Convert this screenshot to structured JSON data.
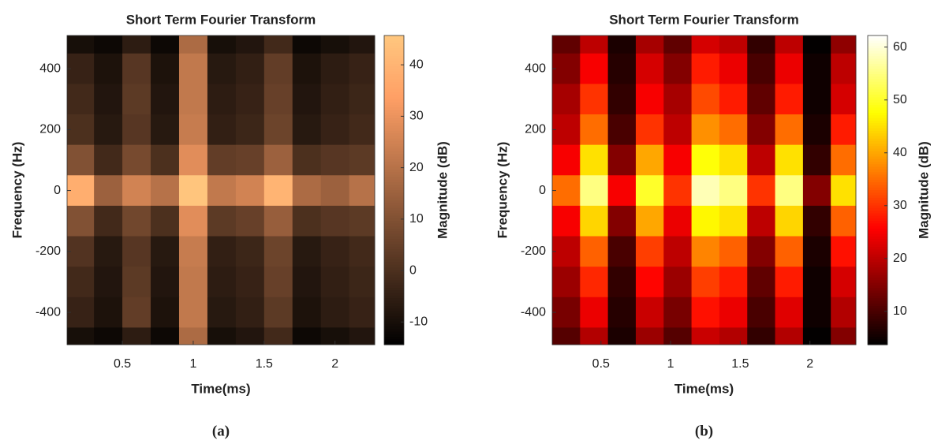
{
  "chart_data": [
    {
      "type": "heatmap",
      "title": "Short Term Fourier Transform",
      "x_label": "Time(ms)",
      "y_label": "Frequency (Hz)",
      "colorbar_label": "Magnitude (dB)",
      "caption": "(a)",
      "colormap": "copper",
      "xlim": [
        0.11,
        2.28
      ],
      "ylim": [
        -506,
        509
      ],
      "xticks": [
        0.5,
        1,
        1.5,
        2
      ],
      "yticks": [
        -400,
        -200,
        0,
        200,
        400
      ],
      "clim": [
        -14.4,
        45.7
      ],
      "cticks": [
        -10,
        0,
        10,
        20,
        30,
        40
      ],
      "x": [
        0.2,
        0.4,
        0.6,
        0.8,
        1.0,
        1.2,
        1.4,
        1.6,
        1.8,
        2.0,
        2.2
      ],
      "y": [
        500,
        400,
        300,
        200,
        100,
        0,
        -100,
        -200,
        -300,
        -400,
        -500
      ],
      "z": [
        [
          -10,
          -12,
          -6,
          -12,
          18,
          -10,
          -8,
          -2,
          -12,
          -10,
          -8
        ],
        [
          -4,
          -9,
          2,
          -9,
          22,
          -7,
          -5,
          4,
          -9,
          -6,
          -4
        ],
        [
          -2,
          -8,
          3,
          -8,
          22,
          -6,
          -4,
          5,
          -8,
          -5,
          -3
        ],
        [
          0,
          -7,
          2,
          -7,
          23,
          -5,
          -3,
          6,
          -7,
          -4,
          -2
        ],
        [
          10,
          -2,
          8,
          0,
          28,
          4,
          5,
          15,
          0,
          2,
          3
        ],
        [
          38,
          15,
          25,
          20,
          45,
          22,
          25,
          40,
          18,
          15,
          20
        ],
        [
          10,
          -2,
          7,
          0,
          28,
          3,
          5,
          14,
          0,
          2,
          3
        ],
        [
          1,
          -7,
          2,
          -7,
          23,
          -5,
          -3,
          6,
          -7,
          -4,
          -2
        ],
        [
          -2,
          -8,
          3,
          -8,
          22,
          -6,
          -4,
          5,
          -8,
          -5,
          -3
        ],
        [
          -4,
          -9,
          4,
          -9,
          22,
          -7,
          -5,
          3,
          -9,
          -6,
          -4
        ],
        [
          -10,
          -12,
          -6,
          -12,
          18,
          -10,
          -8,
          -2,
          -12,
          -10,
          -8
        ]
      ]
    },
    {
      "type": "heatmap",
      "title": "Short Term Fourier Transform",
      "x_label": "Time(ms)",
      "y_label": "Frequency (Hz)",
      "colorbar_label": "Magnitude (dB)",
      "caption": "(b)",
      "colormap": "hot",
      "xlim": [
        0.15,
        2.33
      ],
      "ylim": [
        -506,
        509
      ],
      "xticks": [
        0.5,
        1,
        1.5,
        2
      ],
      "yticks": [
        -400,
        -200,
        0,
        200,
        400
      ],
      "clim": [
        3.7,
        62.2
      ],
      "cticks": [
        10,
        20,
        30,
        40,
        50,
        60
      ],
      "x": [
        0.25,
        0.45,
        0.65,
        0.85,
        1.05,
        1.25,
        1.45,
        1.65,
        1.85,
        2.05,
        2.25
      ],
      "y": [
        500,
        400,
        300,
        200,
        100,
        0,
        -100,
        -200,
        -300,
        -400,
        -500
      ],
      "z": [
        [
          12,
          20,
          6,
          18,
          12,
          22,
          20,
          8,
          20,
          4,
          16
        ],
        [
          15,
          25,
          7,
          22,
          15,
          28,
          24,
          10,
          24,
          5,
          20
        ],
        [
          18,
          30,
          8,
          25,
          18,
          32,
          28,
          12,
          28,
          5,
          22
        ],
        [
          20,
          35,
          10,
          30,
          20,
          38,
          35,
          15,
          35,
          6,
          28
        ],
        [
          25,
          45,
          15,
          40,
          25,
          48,
          45,
          20,
          45,
          8,
          35
        ],
        [
          35,
          55,
          25,
          50,
          30,
          58,
          55,
          30,
          55,
          15,
          45
        ],
        [
          25,
          44,
          15,
          40,
          24,
          47,
          45,
          20,
          44,
          8,
          34
        ],
        [
          20,
          34,
          10,
          31,
          20,
          37,
          34,
          15,
          34,
          6,
          27
        ],
        [
          17,
          29,
          8,
          26,
          17,
          31,
          28,
          12,
          28,
          5,
          22
        ],
        [
          14,
          24,
          7,
          21,
          14,
          27,
          24,
          10,
          23,
          5,
          19
        ],
        [
          11,
          19,
          6,
          17,
          11,
          21,
          19,
          8,
          19,
          4,
          15
        ]
      ]
    }
  ]
}
